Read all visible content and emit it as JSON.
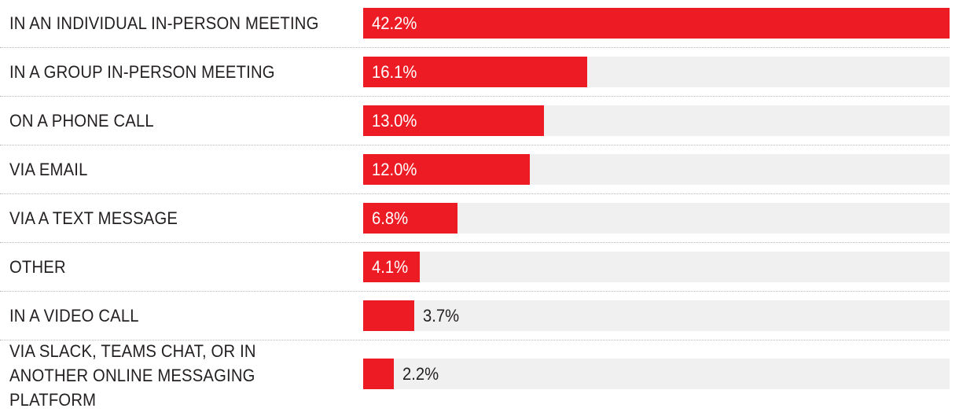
{
  "chart_data": {
    "type": "bar",
    "orientation": "horizontal",
    "categories": [
      "IN AN INDIVIDUAL IN-PERSON MEETING",
      "IN A GROUP IN-PERSON MEETING",
      "ON A PHONE CALL",
      "VIA EMAIL",
      "VIA A TEXT MESSAGE",
      "OTHER",
      "IN A VIDEO CALL",
      "VIA SLACK, TEAMS CHAT, OR IN ANOTHER ONLINE MESSAGING PLATFORM"
    ],
    "values": [
      42.2,
      16.1,
      13.0,
      12.0,
      6.8,
      4.1,
      3.7,
      2.2
    ],
    "value_labels": [
      "42.2%",
      "16.1%",
      "13.0%",
      "12.0%",
      "6.8%",
      "4.1%",
      "3.7%",
      "2.2%"
    ],
    "xlim": [
      0,
      42.2
    ],
    "unit": "%",
    "title": "",
    "xlabel": "",
    "ylabel": ""
  },
  "colors": {
    "bar": "#ed1c24",
    "track": "#f0f0f0",
    "label_inside": "#ffffff",
    "label_outside": "#231f20",
    "text": "#231f20"
  }
}
